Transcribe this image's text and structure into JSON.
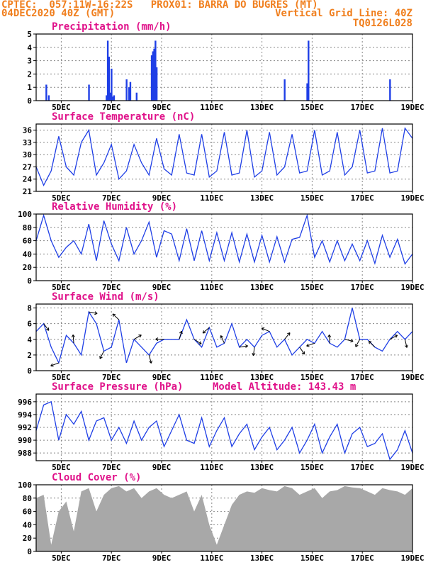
{
  "header": {
    "line1_left": "CPTEC:  057:11W-16:22S   PROX01: BARRA DO BUGRES (MT)",
    "line2_left": "04DEC2020 40Z (GMT)",
    "line2_right": "Vertical Grid Line: 40Z",
    "line3_right": "TQ0126L028",
    "altitude": "Model Altitude: 143.43 m"
  },
  "colors": {
    "header": "#f07f1e",
    "title": "#e0128a",
    "line": "#1f3fe6",
    "cloud": "#a8a8a8"
  },
  "chart_data": [
    {
      "type": "bar",
      "title": "Precipitation (mm/h)",
      "ylim": [
        0,
        5
      ],
      "yticks": [
        0,
        1,
        2,
        3,
        4,
        5
      ],
      "x_ticks": [
        "5DEC",
        "7DEC",
        "9DEC",
        "11DEC",
        "13DEC",
        "15DEC",
        "17DEC",
        "19DEC"
      ],
      "x_day": [
        4.4,
        4.5,
        6.1,
        6.8,
        6.85,
        6.9,
        6.95,
        7.0,
        7.05,
        7.1,
        7.6,
        7.7,
        7.75,
        8.0,
        8.6,
        8.65,
        8.7,
        8.75,
        8.8,
        13.9,
        14.8,
        14.85,
        18.1
      ],
      "values": [
        1.2,
        0.4,
        1.2,
        0.4,
        4.5,
        3.3,
        0.6,
        2.4,
        0.3,
        0.4,
        1.6,
        1.0,
        1.4,
        0.6,
        3.4,
        3.7,
        3.9,
        4.5,
        2.5,
        1.6,
        1.3,
        4.5,
        1.6
      ]
    },
    {
      "type": "line",
      "title": "Surface Temperature (nC)",
      "ylim": [
        21,
        37.5
      ],
      "yticks": [
        21,
        24,
        27,
        30,
        33,
        36
      ],
      "x_ticks": [
        "5DEC",
        "7DEC",
        "9DEC",
        "11DEC",
        "13DEC",
        "15DEC",
        "17DEC",
        "19DEC"
      ],
      "x_day": [
        4,
        4.3,
        4.6,
        4.9,
        5.2,
        5.5,
        5.8,
        6.1,
        6.4,
        6.7,
        7.0,
        7.3,
        7.6,
        7.9,
        8.2,
        8.5,
        8.8,
        9.1,
        9.4,
        9.7,
        10.0,
        10.3,
        10.6,
        10.9,
        11.2,
        11.5,
        11.8,
        12.1,
        12.4,
        12.7,
        13.0,
        13.3,
        13.6,
        13.9,
        14.2,
        14.5,
        14.8,
        15.1,
        15.4,
        15.7,
        16.0,
        16.3,
        16.6,
        16.9,
        17.2,
        17.5,
        17.8,
        18.1,
        18.4,
        18.7,
        19.0
      ],
      "values": [
        27,
        22.5,
        26,
        34.5,
        27,
        25,
        33,
        36,
        25,
        28,
        32.5,
        24,
        26,
        32.5,
        28,
        25,
        34,
        26.5,
        25,
        35,
        25.5,
        25,
        35,
        24.5,
        26,
        35.5,
        25,
        25.5,
        36,
        24.5,
        26,
        35.5,
        25,
        27,
        35,
        25.5,
        26,
        36,
        25,
        26,
        35.5,
        25,
        27,
        36,
        25.5,
        26,
        36.5,
        25.5,
        26,
        36.5,
        34
      ]
    },
    {
      "type": "line",
      "title": "Relative Humidity (%)",
      "ylim": [
        0,
        100
      ],
      "yticks": [
        0,
        20,
        40,
        60,
        80,
        100
      ],
      "x_ticks": [
        "5DEC",
        "7DEC",
        "9DEC",
        "11DEC",
        "13DEC",
        "15DEC",
        "17DEC",
        "19DEC"
      ],
      "x_day": [
        4,
        4.3,
        4.6,
        4.9,
        5.2,
        5.5,
        5.8,
        6.1,
        6.4,
        6.7,
        7.0,
        7.3,
        7.6,
        7.9,
        8.2,
        8.5,
        8.8,
        9.1,
        9.4,
        9.7,
        10.0,
        10.3,
        10.6,
        10.9,
        11.2,
        11.5,
        11.8,
        12.1,
        12.4,
        12.7,
        13.0,
        13.3,
        13.6,
        13.9,
        14.2,
        14.5,
        14.8,
        15.1,
        15.4,
        15.7,
        16.0,
        16.3,
        16.6,
        16.9,
        17.2,
        17.5,
        17.8,
        18.1,
        18.4,
        18.7,
        19.0
      ],
      "values": [
        60,
        98,
        60,
        35,
        50,
        60,
        40,
        85,
        30,
        90,
        55,
        30,
        80,
        40,
        60,
        88,
        35,
        75,
        70,
        30,
        78,
        30,
        75,
        30,
        72,
        30,
        72,
        28,
        70,
        28,
        68,
        28,
        66,
        28,
        62,
        65,
        98,
        35,
        60,
        28,
        60,
        30,
        55,
        30,
        60,
        26,
        68,
        35,
        62,
        25,
        40
      ]
    },
    {
      "type": "line",
      "title": "Surface Wind (m/s)",
      "ylim": [
        0,
        8.5
      ],
      "yticks": [
        0,
        2,
        4,
        6,
        8
      ],
      "x_ticks": [
        "5DEC",
        "7DEC",
        "9DEC",
        "11DEC",
        "13DEC",
        "15DEC",
        "17DEC",
        "19DEC"
      ],
      "x_day": [
        4,
        4.3,
        4.6,
        4.9,
        5.2,
        5.5,
        5.8,
        6.1,
        6.4,
        6.7,
        7.0,
        7.3,
        7.6,
        7.9,
        8.2,
        8.5,
        8.8,
        9.1,
        9.4,
        9.7,
        10.0,
        10.3,
        10.6,
        10.9,
        11.2,
        11.5,
        11.8,
        12.1,
        12.4,
        12.7,
        13.0,
        13.3,
        13.6,
        13.9,
        14.2,
        14.5,
        14.8,
        15.1,
        15.4,
        15.7,
        16.0,
        16.3,
        16.6,
        16.9,
        17.2,
        17.5,
        17.8,
        18.1,
        18.4,
        18.7,
        19.0
      ],
      "values": [
        5,
        6,
        3,
        1,
        4.5,
        3.5,
        2,
        7.5,
        6,
        2.5,
        3,
        6.5,
        1,
        4,
        3,
        2,
        3.5,
        4,
        4,
        4,
        6.5,
        4,
        3,
        5.5,
        3,
        3.5,
        6,
        3,
        4,
        3,
        4.5,
        5,
        3,
        4,
        2,
        3,
        4,
        3.5,
        5,
        3.5,
        3,
        4,
        8,
        4,
        4,
        3,
        2.5,
        4,
        5,
        4,
        5
      ]
    },
    {
      "type": "line",
      "title": "Surface Pressure (hPa)",
      "ylim": [
        986.8,
        997.2
      ],
      "yticks": [
        988,
        990,
        992,
        994,
        996
      ],
      "x_ticks": [
        "5DEC",
        "7DEC",
        "9DEC",
        "11DEC",
        "13DEC",
        "15DEC",
        "17DEC",
        "19DEC"
      ],
      "x_day": [
        4,
        4.3,
        4.6,
        4.9,
        5.2,
        5.5,
        5.8,
        6.1,
        6.4,
        6.7,
        7.0,
        7.3,
        7.6,
        7.9,
        8.2,
        8.5,
        8.8,
        9.1,
        9.4,
        9.7,
        10.0,
        10.3,
        10.6,
        10.9,
        11.2,
        11.5,
        11.8,
        12.1,
        12.4,
        12.7,
        13.0,
        13.3,
        13.6,
        13.9,
        14.2,
        14.5,
        14.8,
        15.1,
        15.4,
        15.7,
        16.0,
        16.3,
        16.6,
        16.9,
        17.2,
        17.5,
        17.8,
        18.1,
        18.4,
        18.7,
        19.0
      ],
      "values": [
        991.5,
        995.5,
        996,
        990,
        994,
        992.5,
        994.5,
        990,
        993,
        993.5,
        990,
        992,
        989.5,
        993,
        990,
        992,
        993,
        989,
        991.5,
        994,
        990,
        989.5,
        993.5,
        989,
        991.5,
        993.5,
        989,
        991,
        992.5,
        988.5,
        990.5,
        992,
        988.5,
        990,
        992,
        988,
        990,
        992.5,
        988,
        990.5,
        992.5,
        988,
        991,
        992,
        989,
        989.5,
        991,
        987,
        988.5,
        991.5,
        988
      ]
    },
    {
      "type": "area",
      "title": "Cloud Cover (%)",
      "ylim": [
        0,
        100
      ],
      "yticks": [
        0,
        20,
        40,
        60,
        80,
        100
      ],
      "x_ticks": [
        "5DEC",
        "7DEC",
        "9DEC",
        "11DEC",
        "13DEC",
        "15DEC",
        "17DEC",
        "19DEC"
      ],
      "x_day": [
        4,
        4.3,
        4.6,
        4.9,
        5.2,
        5.5,
        5.8,
        6.1,
        6.4,
        6.7,
        7.0,
        7.3,
        7.6,
        7.9,
        8.2,
        8.5,
        8.8,
        9.1,
        9.4,
        9.7,
        10.0,
        10.3,
        10.6,
        10.9,
        11.2,
        11.5,
        11.8,
        12.1,
        12.4,
        12.7,
        13.0,
        13.3,
        13.6,
        13.9,
        14.2,
        14.5,
        14.8,
        15.1,
        15.4,
        15.7,
        16.0,
        16.3,
        16.6,
        16.9,
        17.2,
        17.5,
        17.8,
        18.1,
        18.4,
        18.7,
        19.0
      ],
      "values": [
        80,
        85,
        10,
        60,
        75,
        30,
        90,
        95,
        60,
        85,
        95,
        98,
        90,
        95,
        80,
        90,
        95,
        85,
        80,
        85,
        90,
        60,
        85,
        40,
        10,
        40,
        70,
        85,
        90,
        88,
        95,
        92,
        90,
        98,
        95,
        85,
        90,
        95,
        80,
        90,
        92,
        98,
        96,
        95,
        90,
        85,
        95,
        92,
        90,
        85,
        95
      ]
    }
  ]
}
